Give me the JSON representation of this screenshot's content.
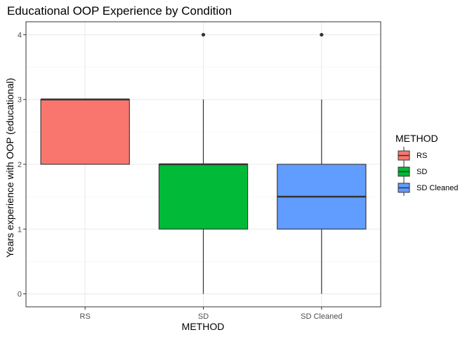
{
  "chart_data": {
    "type": "box",
    "title": "Educational OOP Experience by Condition",
    "xlabel": "METHOD",
    "ylabel": "Years experience with OOP (educational)",
    "categories": [
      "RS",
      "SD",
      "SD Cleaned"
    ],
    "ylim": [
      -0.2,
      4.2
    ],
    "yticks": [
      0,
      1,
      2,
      3,
      4
    ],
    "grid": true,
    "boxes": [
      {
        "category": "RS",
        "min": 2,
        "q1": 2,
        "median": 3,
        "q3": 3,
        "max": 3,
        "outliers": [],
        "color": "#F8766D"
      },
      {
        "category": "SD",
        "min": 0,
        "q1": 1,
        "median": 2,
        "q3": 2,
        "max": 3,
        "outliers": [
          4
        ],
        "color": "#00BA38"
      },
      {
        "category": "SD Cleaned",
        "min": 0,
        "q1": 1,
        "median": 1.5,
        "q3": 2,
        "max": 3,
        "outliers": [
          4
        ],
        "color": "#619CFF"
      }
    ],
    "legend": {
      "title": "METHOD",
      "position": "right",
      "items": [
        {
          "label": "RS",
          "color": "#F8766D"
        },
        {
          "label": "SD",
          "color": "#00BA38"
        },
        {
          "label": "SD Cleaned",
          "color": "#619CFF"
        }
      ]
    }
  }
}
